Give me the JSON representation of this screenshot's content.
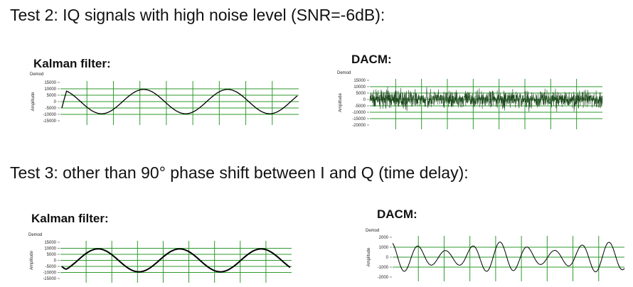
{
  "tests": [
    {
      "heading": "Test 2: IQ signals with high noise level (SNR=-6dB):",
      "kalman_title": "Kalman filter:",
      "dacm_title": "DACM:"
    },
    {
      "heading": "Test 3: other than 90° phase shift between I and Q (time delay):",
      "kalman_title": "Kalman filter:",
      "dacm_title": "DACM:"
    }
  ],
  "colors": {
    "grid": "#2e9a2e",
    "trace": "#000000",
    "noise_trace": "#1f4a1f"
  },
  "chart_data": [
    {
      "id": "test2-kalman",
      "type": "line",
      "plot_label": "Demod",
      "ylabel": "Amplitude",
      "yticks": [
        15000,
        10000,
        5000,
        0,
        -5000,
        -10000,
        -15000
      ],
      "ylim": [
        -15000,
        15000
      ],
      "series": [
        {
          "shape": "sine",
          "amplitude": 9500,
          "cycles": 2.8,
          "phase_deg": 100
        }
      ]
    },
    {
      "id": "test2-dacm",
      "type": "line",
      "plot_label": "Demod",
      "ylabel": "Amplitude",
      "yticks": [
        15000,
        10000,
        5000,
        0,
        -5000,
        -10000,
        -15000,
        -20000
      ],
      "ylim": [
        -20000,
        15000
      ],
      "series": [
        {
          "shape": "noise",
          "mean": 0,
          "spread": 4000,
          "peak": 10000
        }
      ]
    },
    {
      "id": "test3-kalman",
      "type": "line",
      "plot_label": "Demod",
      "ylabel": "Amplitude",
      "yticks": [
        15000,
        10000,
        5000,
        0,
        -5000,
        -10000,
        -15000
      ],
      "ylim": [
        -15000,
        15000
      ],
      "series": [
        {
          "shape": "sine",
          "amplitude": 9500,
          "cycles": 2.8,
          "phase_deg": -70
        }
      ]
    },
    {
      "id": "test3-dacm",
      "type": "line",
      "plot_label": "Demod",
      "ylabel": "Amplitude",
      "yticks": [
        2000,
        1000,
        0,
        -1000,
        -2000
      ],
      "ylim": [
        -2000,
        2000
      ],
      "series": [
        {
          "shape": "beat",
          "amplitude_large": 1600,
          "amplitude_small": 700,
          "cycles": 8.5
        }
      ]
    }
  ]
}
